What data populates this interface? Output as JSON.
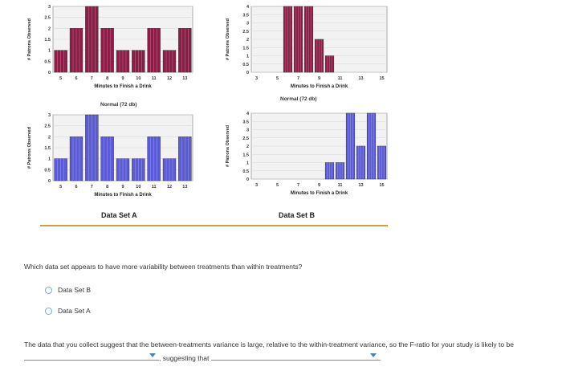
{
  "charts": [
    {
      "id": "set-a-top",
      "series_color": "#8c1d46",
      "ylabel": "# Patrons Observed",
      "yticks": [
        "0",
        "0.5",
        "1",
        "1.5",
        "2",
        "2.5",
        "3"
      ],
      "xticks": [
        "5",
        "6",
        "7",
        "8",
        "9",
        "10",
        "11",
        "12",
        "13"
      ],
      "xlabel": "Minutes to Finish a Drink",
      "values": [
        1,
        2,
        3,
        2,
        1,
        1,
        2,
        1,
        2
      ]
    },
    {
      "id": "set-b-top",
      "series_color": "#8c1d46",
      "ylabel": "# Patrons Observed",
      "yticks": [
        "0",
        "0.5",
        "1",
        "1.5",
        "2",
        "2.5",
        "3",
        "3.5",
        "4"
      ],
      "xticks": [
        "3",
        "5",
        "7",
        "9",
        "11",
        "13",
        "15"
      ],
      "xlabel": "Minutes to Finish a Drink",
      "values": [
        0,
        0,
        0,
        4,
        4,
        4,
        2,
        1,
        0,
        0,
        0,
        0,
        0
      ]
    },
    {
      "id": "set-a-bottom",
      "series_color": "#5b5bd6",
      "ylabel": "# Patrons Observed",
      "yticks": [
        "0",
        "0.5",
        "1",
        "1.5",
        "2",
        "2.5",
        "3"
      ],
      "xticks": [
        "5",
        "6",
        "7",
        "8",
        "9",
        "10",
        "11",
        "12",
        "13"
      ],
      "xlabel": "Minutes to Finish a Drink",
      "values": [
        1,
        2,
        3,
        2,
        1,
        1,
        2,
        1,
        2
      ]
    },
    {
      "id": "set-b-bottom",
      "series_color": "#5b5bd6",
      "ylabel": "# Patrons Observed",
      "yticks": [
        "0",
        "0.5",
        "1",
        "1.5",
        "2",
        "2.5",
        "3",
        "3.5",
        "4"
      ],
      "xticks": [
        "3",
        "5",
        "7",
        "9",
        "11",
        "13",
        "15"
      ],
      "xlabel": "Minutes to Finish a Drink",
      "values": [
        0,
        0,
        0,
        0,
        0,
        0,
        0,
        1,
        1,
        4,
        2,
        4,
        2
      ]
    }
  ],
  "labels": {
    "normal_a": "Normal (72 db)",
    "normal_b": "Normal (72 db)",
    "data_set_a": "Data Set A",
    "data_set_b": "Data Set B"
  },
  "question": "Which data set appears to have more variability between treatments than within treatments?",
  "options": [
    {
      "label": "Data Set B"
    },
    {
      "label": "Data Set A"
    }
  ],
  "sentence": {
    "part1": "The data that you collect suggest that the between-treatments variance is large, relative to the within-treatment variance, so the F-ratio for your study is likely to be",
    "part2": ", suggesting that",
    "part3": "."
  },
  "colors": {
    "accent_dropdown": "#4a7fc1",
    "divider": "#c9a23a",
    "radio_border": "#7aa9d8"
  }
}
